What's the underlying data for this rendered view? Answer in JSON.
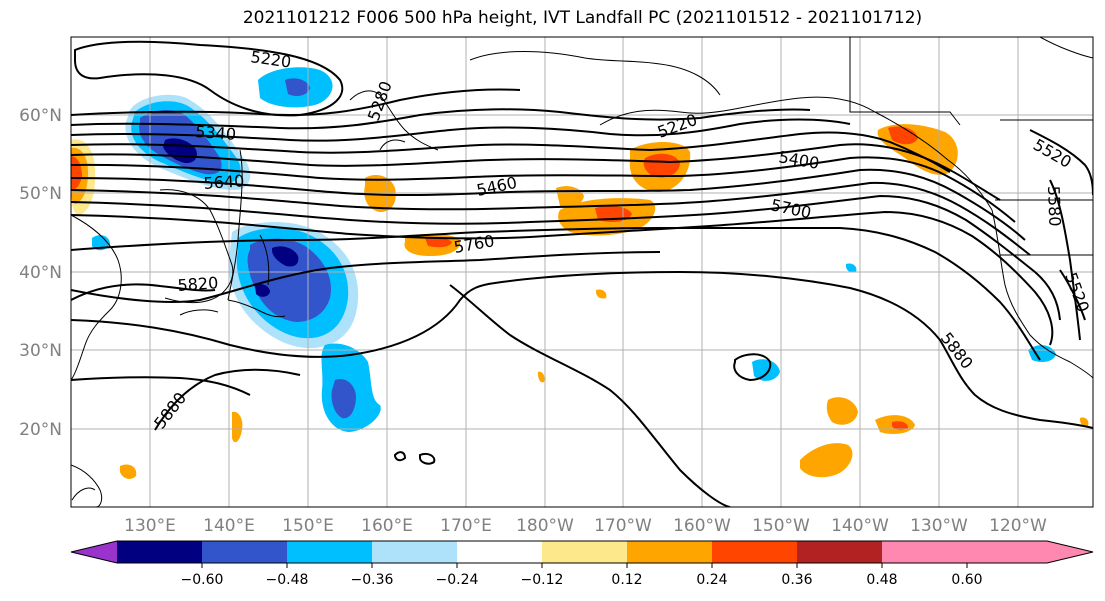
{
  "title": "2021101212 F006 500 hPa height, IVT Landfall PC (2021101512 - 2021101712)",
  "map": {
    "projection": "PlateCarree",
    "lat_labels": [
      "60°N",
      "50°N",
      "40°N",
      "30°N",
      "20°N"
    ],
    "lon_labels": [
      "130°E",
      "140°E",
      "150°E",
      "160°E",
      "170°E",
      "180°W",
      "170°W",
      "160°W",
      "150°W",
      "140°W",
      "130°W",
      "120°W"
    ],
    "height_contour_labels": [
      "5220",
      "5340",
      "5640",
      "5280",
      "5220",
      "5460",
      "5400",
      "5700",
      "5760",
      "5820",
      "5880",
      "5880",
      "5520",
      "5580",
      "5520"
    ]
  },
  "colorbar": {
    "tick_labels": [
      "−0.60",
      "−0.48",
      "−0.36",
      "−0.24",
      "−0.12",
      "0.12",
      "0.24",
      "0.36",
      "0.48",
      "0.60"
    ],
    "colors": [
      "#9933cc",
      "#000080",
      "#3355cc",
      "#00bfff",
      "#aee2fb",
      "#ffffff",
      "#fde98c",
      "#ffa500",
      "#ff4500",
      "#b22222",
      "#ff88b0"
    ],
    "extend": "both"
  },
  "colors": {
    "neg_strong": "#000080",
    "neg_mid": "#3355cc",
    "neg_light": "#00bfff",
    "neg_pale": "#aee2fb",
    "pos_pale": "#fde98c",
    "pos_light": "#ffa500",
    "pos_mid": "#ff4500",
    "pos_strong": "#b22222",
    "gridline": "#b0b0b0",
    "coast": "#000000"
  }
}
